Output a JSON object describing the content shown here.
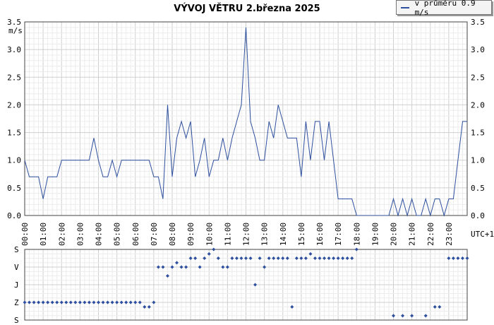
{
  "chart_data": [
    {
      "type": "line",
      "title": "VÝVOJ VĚTRU  2.března 2025",
      "legend": "v průměru 0.9 m/s",
      "legend_position": "top-right",
      "unit_label": "m/s",
      "time_zone_label": "UTC+1",
      "ylim": [
        0,
        3.5
      ],
      "y_ticks": [
        "0.0",
        "0.5",
        "1.0",
        "1.5",
        "2.0",
        "2.5",
        "3.0",
        "3.5"
      ],
      "x_tick_labels": [
        "00:00",
        "01:00",
        "02:00",
        "03:00",
        "04:00",
        "05:00",
        "06:00",
        "07:00",
        "08:00",
        "09:00",
        "10:00",
        "11:00",
        "12:00",
        "13:00",
        "14:00",
        "15:00",
        "16:00",
        "17:00",
        "18:00",
        "19:00",
        "20:00",
        "21:00",
        "22:00",
        "23:00"
      ],
      "grid": true,
      "series": [
        {
          "name": "v průměru 0.9 m/s",
          "color": "#2d4f9e",
          "points": [
            [
              0,
              1.0
            ],
            [
              0.25,
              0.7
            ],
            [
              0.5,
              0.7
            ],
            [
              0.75,
              0.7
            ],
            [
              1.0,
              0.3
            ],
            [
              1.25,
              0.7
            ],
            [
              1.5,
              0.7
            ],
            [
              1.75,
              0.7
            ],
            [
              2.0,
              1.0
            ],
            [
              2.5,
              1.0
            ],
            [
              3.0,
              1.0
            ],
            [
              3.5,
              1.0
            ],
            [
              3.75,
              1.4
            ],
            [
              4.0,
              1.0
            ],
            [
              4.25,
              0.7
            ],
            [
              4.5,
              0.7
            ],
            [
              4.75,
              1.0
            ],
            [
              5.0,
              0.7
            ],
            [
              5.25,
              1.0
            ],
            [
              5.5,
              1.0
            ],
            [
              6.0,
              1.0
            ],
            [
              6.5,
              1.0
            ],
            [
              6.75,
              1.0
            ],
            [
              7.0,
              0.7
            ],
            [
              7.25,
              0.7
            ],
            [
              7.5,
              0.3
            ],
            [
              7.75,
              2.0
            ],
            [
              8.0,
              0.7
            ],
            [
              8.25,
              1.4
            ],
            [
              8.5,
              1.7
            ],
            [
              8.75,
              1.4
            ],
            [
              9.0,
              1.7
            ],
            [
              9.25,
              0.7
            ],
            [
              9.5,
              1.0
            ],
            [
              9.75,
              1.4
            ],
            [
              10.0,
              0.7
            ],
            [
              10.25,
              1.0
            ],
            [
              10.5,
              1.0
            ],
            [
              10.75,
              1.4
            ],
            [
              11.0,
              1.0
            ],
            [
              11.25,
              1.4
            ],
            [
              11.5,
              1.7
            ],
            [
              11.75,
              2.0
            ],
            [
              12.0,
              3.4
            ],
            [
              12.25,
              1.7
            ],
            [
              12.5,
              1.4
            ],
            [
              12.75,
              1.0
            ],
            [
              13.0,
              1.0
            ],
            [
              13.25,
              1.7
            ],
            [
              13.5,
              1.4
            ],
            [
              13.75,
              2.0
            ],
            [
              14.0,
              1.7
            ],
            [
              14.25,
              1.4
            ],
            [
              14.5,
              1.4
            ],
            [
              14.75,
              1.4
            ],
            [
              15.0,
              0.7
            ],
            [
              15.25,
              1.7
            ],
            [
              15.5,
              1.0
            ],
            [
              15.75,
              1.7
            ],
            [
              16.0,
              1.7
            ],
            [
              16.25,
              1.0
            ],
            [
              16.5,
              1.7
            ],
            [
              16.75,
              1.0
            ],
            [
              17.0,
              0.3
            ],
            [
              17.25,
              0.3
            ],
            [
              17.5,
              0.3
            ],
            [
              17.75,
              0.3
            ],
            [
              18.0,
              0.0
            ],
            [
              18.5,
              0.0
            ],
            [
              19.0,
              0.0
            ],
            [
              19.5,
              0.0
            ],
            [
              19.75,
              0.0
            ],
            [
              20.0,
              0.3
            ],
            [
              20.25,
              0.0
            ],
            [
              20.5,
              0.3
            ],
            [
              20.75,
              0.0
            ],
            [
              21.0,
              0.3
            ],
            [
              21.25,
              0.0
            ],
            [
              21.5,
              0.0
            ],
            [
              21.75,
              0.3
            ],
            [
              22.0,
              0.0
            ],
            [
              22.25,
              0.3
            ],
            [
              22.5,
              0.3
            ],
            [
              22.75,
              0.0
            ],
            [
              23.0,
              0.3
            ],
            [
              23.25,
              0.3
            ],
            [
              23.5,
              1.0
            ],
            [
              23.75,
              1.7
            ],
            [
              24.0,
              1.7
            ]
          ]
        }
      ]
    },
    {
      "type": "scatter",
      "y_category_labels": [
        "S",
        "V",
        "J",
        "Z",
        "S"
      ],
      "color": "#2d4f9e",
      "series": [
        {
          "points": [
            [
              0,
              270
            ],
            [
              0.25,
              270
            ],
            [
              0.5,
              270
            ],
            [
              0.75,
              270
            ],
            [
              1.0,
              270
            ],
            [
              1.25,
              270
            ],
            [
              1.5,
              270
            ],
            [
              1.75,
              270
            ],
            [
              2.0,
              270
            ],
            [
              2.25,
              270
            ],
            [
              2.5,
              270
            ],
            [
              2.75,
              270
            ],
            [
              3.0,
              270
            ],
            [
              3.25,
              270
            ],
            [
              3.5,
              270
            ],
            [
              3.75,
              270
            ],
            [
              4.0,
              270
            ],
            [
              4.25,
              270
            ],
            [
              4.5,
              270
            ],
            [
              4.75,
              270
            ],
            [
              5.0,
              270
            ],
            [
              5.25,
              270
            ],
            [
              5.5,
              270
            ],
            [
              5.75,
              270
            ],
            [
              6.0,
              270
            ],
            [
              6.25,
              270
            ],
            [
              6.5,
              293
            ],
            [
              6.75,
              293
            ],
            [
              7.0,
              270
            ],
            [
              7.25,
              90
            ],
            [
              7.5,
              90
            ],
            [
              7.75,
              135
            ],
            [
              8.0,
              90
            ],
            [
              8.25,
              68
            ],
            [
              8.5,
              90
            ],
            [
              8.75,
              90
            ],
            [
              9.0,
              45
            ],
            [
              9.25,
              45
            ],
            [
              9.5,
              90
            ],
            [
              9.75,
              45
            ],
            [
              10.0,
              23
            ],
            [
              10.25,
              0
            ],
            [
              10.5,
              45
            ],
            [
              10.75,
              90
            ],
            [
              11.0,
              90
            ],
            [
              11.25,
              45
            ],
            [
              11.5,
              45
            ],
            [
              11.75,
              45
            ],
            [
              12.0,
              45
            ],
            [
              12.25,
              45
            ],
            [
              12.5,
              180
            ],
            [
              12.75,
              45
            ],
            [
              13.0,
              90
            ],
            [
              13.25,
              45
            ],
            [
              13.5,
              45
            ],
            [
              13.75,
              45
            ],
            [
              14.0,
              45
            ],
            [
              14.25,
              45
            ],
            [
              14.5,
              293
            ],
            [
              14.75,
              45
            ],
            [
              15.0,
              45
            ],
            [
              15.25,
              45
            ],
            [
              15.5,
              23
            ],
            [
              15.75,
              45
            ],
            [
              16.0,
              45
            ],
            [
              16.25,
              45
            ],
            [
              16.5,
              45
            ],
            [
              16.75,
              45
            ],
            [
              17.0,
              45
            ],
            [
              17.25,
              45
            ],
            [
              17.5,
              45
            ],
            [
              17.75,
              45
            ],
            [
              18.0,
              0
            ],
            [
              20.0,
              338
            ],
            [
              20.5,
              338
            ],
            [
              21.0,
              338
            ],
            [
              21.75,
              338
            ],
            [
              22.25,
              293
            ],
            [
              22.5,
              293
            ],
            [
              23.0,
              45
            ],
            [
              23.25,
              45
            ],
            [
              23.5,
              45
            ],
            [
              23.75,
              45
            ],
            [
              24.0,
              45
            ]
          ]
        }
      ]
    }
  ]
}
